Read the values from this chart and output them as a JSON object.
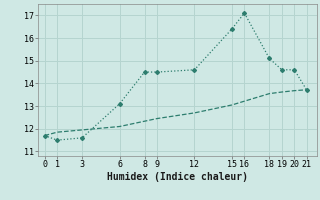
{
  "line1_x": [
    0,
    1,
    3,
    6,
    8,
    9,
    12,
    15,
    16,
    18,
    19,
    20,
    21
  ],
  "line1_y": [
    11.7,
    11.5,
    11.6,
    13.1,
    14.5,
    14.5,
    14.6,
    16.4,
    17.1,
    15.1,
    14.6,
    14.6,
    13.7
  ],
  "line2_x": [
    0,
    1,
    3,
    6,
    9,
    12,
    15,
    18,
    19,
    20,
    21
  ],
  "line2_y": [
    11.7,
    11.85,
    11.95,
    12.1,
    12.45,
    12.7,
    13.05,
    13.55,
    13.62,
    13.68,
    13.72
  ],
  "color": "#2d7d6e",
  "bg_color": "#cfe8e4",
  "grid_color": "#b5d4cf",
  "xlabel": "Humidex (Indice chaleur)",
  "xticks": [
    0,
    1,
    3,
    6,
    8,
    9,
    12,
    15,
    16,
    18,
    19,
    20,
    21
  ],
  "yticks": [
    11,
    12,
    13,
    14,
    15,
    16,
    17
  ],
  "ylim": [
    10.8,
    17.5
  ],
  "xlim": [
    -0.5,
    21.8
  ]
}
